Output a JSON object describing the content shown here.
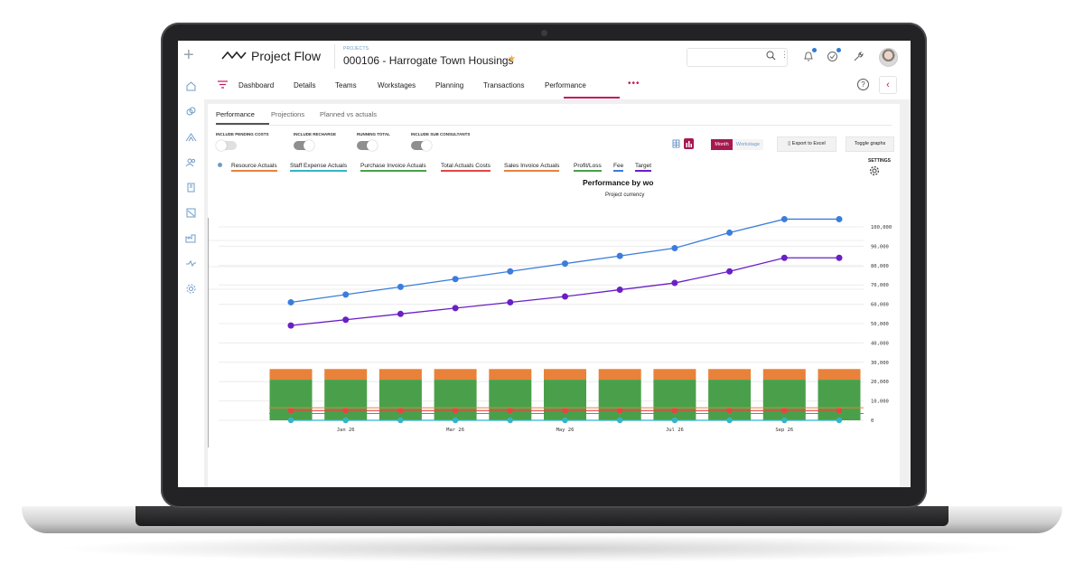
{
  "app": {
    "name": "Project Flow"
  },
  "header": {
    "breadcrumb": "PROJECTS",
    "project_title": "000106 - Harrogate Town Housings",
    "search_placeholder": ""
  },
  "nav": {
    "tabs": [
      "Dashboard",
      "Details",
      "Teams",
      "Workstages",
      "Planning",
      "Transactions",
      "Performance"
    ],
    "active_tab": "Performance",
    "more": "•••",
    "help": "?"
  },
  "subtabs": [
    "Performance",
    "Projections",
    "Planned vs actuals"
  ],
  "toggles": [
    {
      "label": "INCLUDE PENDING COSTS",
      "on": false
    },
    {
      "label": "INCLUDE RECHARGE",
      "on": true
    },
    {
      "label": "RUNNING TOTAL",
      "on": true
    },
    {
      "label": "INCLUDE SUB CONSULTANTS",
      "on": true
    }
  ],
  "controls": {
    "month": "Month",
    "workstage": "Workstage",
    "export": "Export to Excel",
    "toggle_graphs": "Toggle graphs",
    "settings": "SETTINGS"
  },
  "colors": {
    "accent": "#a5194f",
    "fee": "#3b7ddd",
    "target": "#6a1fc6",
    "resource": "#e8823a",
    "staff": "#36b3c9",
    "purchase": "#4aa04a",
    "total": "#e24646",
    "sales": "#e8823a",
    "profit": "#4aa04a"
  },
  "chart_data": {
    "type": "line",
    "title": "Performance by wo",
    "subtitle": "Project currency",
    "legend": [
      {
        "name": "Resource Actuals",
        "color": "#e8823a"
      },
      {
        "name": "Staff Expense Actuals",
        "color": "#36b3c9"
      },
      {
        "name": "Purchase Invoice Actuals",
        "color": "#4aa04a"
      },
      {
        "name": "Total Actuals Costs",
        "color": "#e24646"
      },
      {
        "name": "Sales Invoice Actuals",
        "color": "#e8823a"
      },
      {
        "name": "Profit/Loss",
        "color": "#4aa04a"
      },
      {
        "name": "Fee",
        "color": "#3b7ddd"
      },
      {
        "name": "Target",
        "color": "#6a1fc6"
      }
    ],
    "x_tick_labels": [
      "Jan 26",
      "Mar 26",
      "May 26",
      "Jul 26",
      "Sep 26"
    ],
    "y_tick_labels": [
      "0",
      "10,000",
      "20,000",
      "30,000",
      "40,000",
      "50,000",
      "60,000",
      "70,000",
      "80,000",
      "90,000",
      "100,000"
    ],
    "ylim": [
      0,
      100000
    ],
    "series": [
      {
        "name": "Fee",
        "values": [
          61000,
          65000,
          69000,
          73000,
          77000,
          81000,
          85000,
          89000,
          97000,
          104000,
          104000
        ]
      },
      {
        "name": "Target",
        "values": [
          49000,
          52000,
          55000,
          58000,
          61000,
          64000,
          67500,
          71000,
          77000,
          84000,
          84000
        ]
      },
      {
        "name": "Purchase Invoice Actuals",
        "values": [
          21000,
          21000,
          21000,
          21000,
          21000,
          21000,
          21000,
          21000,
          21000,
          21000,
          21000
        ]
      },
      {
        "name": "Resource Actuals",
        "values": [
          5500,
          5500,
          5500,
          5500,
          5500,
          5500,
          5500,
          5500,
          5500,
          5500,
          5500
        ]
      },
      {
        "name": "Total Actuals Costs",
        "values": [
          5000,
          5000,
          5000,
          5000,
          5000,
          5000,
          5000,
          5000,
          5000,
          5000,
          5000
        ]
      },
      {
        "name": "Staff Expense Actuals",
        "values": [
          0,
          0,
          0,
          0,
          0,
          0,
          0,
          0,
          0,
          0,
          0
        ]
      }
    ]
  }
}
